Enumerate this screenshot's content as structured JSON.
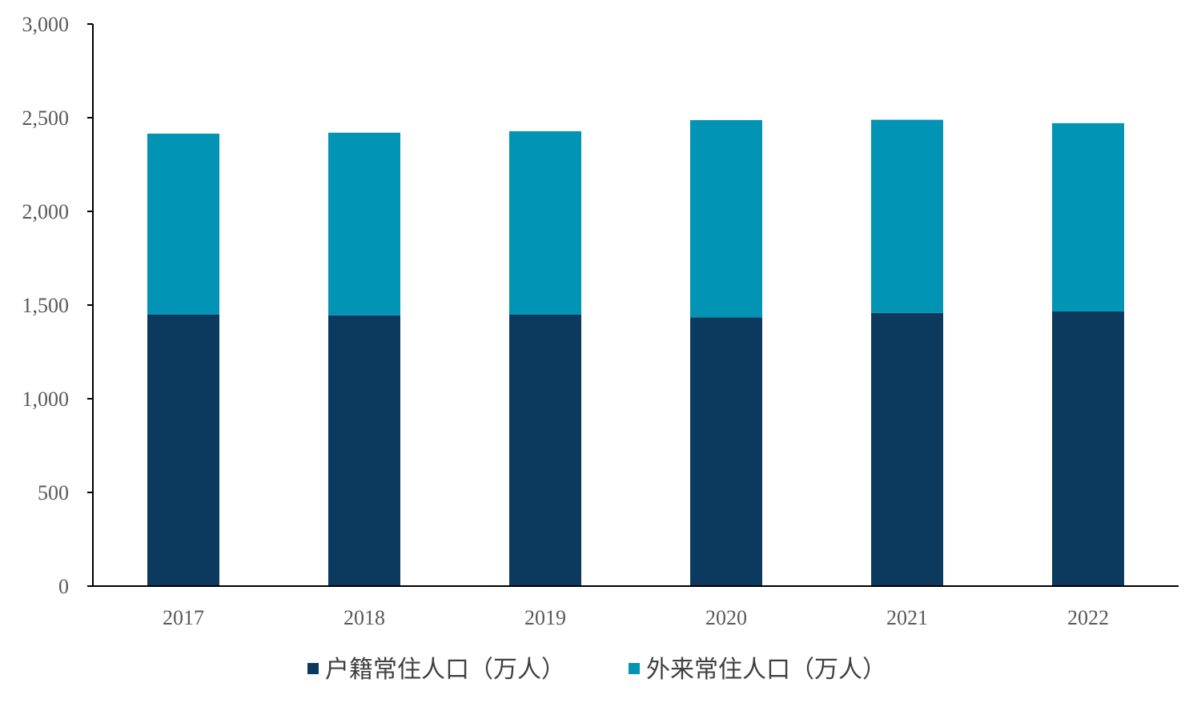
{
  "chart_data": {
    "type": "bar",
    "stacked": true,
    "categories": [
      "2017",
      "2018",
      "2019",
      "2020",
      "2021",
      "2022"
    ],
    "series": [
      {
        "name": "户籍常住人口（万人）",
        "color": "#0c3a5e",
        "values": [
          1450,
          1445,
          1450,
          1435,
          1458,
          1466
        ]
      },
      {
        "name": "外来常住人口（万人）",
        "color": "#0294b4",
        "values": [
          965,
          975,
          978,
          1052,
          1031,
          1005
        ]
      }
    ],
    "ylim": [
      0,
      3000
    ],
    "yticks": [
      0,
      500,
      1000,
      1500,
      2000,
      2500,
      3000
    ],
    "ytick_labels": [
      "0",
      "500",
      "1,000",
      "1,500",
      "2,000",
      "2,500",
      "3,000"
    ],
    "grid": false,
    "legend_position": "bottom",
    "title": "",
    "xlabel": "",
    "ylabel": ""
  }
}
